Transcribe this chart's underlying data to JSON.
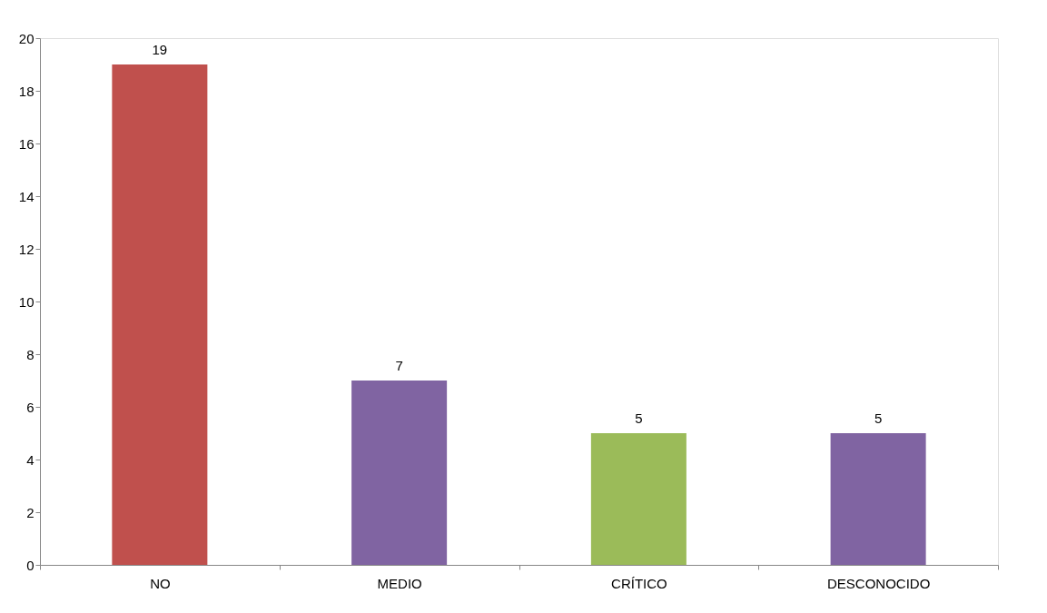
{
  "chart_data": {
    "type": "bar",
    "categories": [
      "NO",
      "MEDIO",
      "CRÍTICO",
      "DESCONOCIDO"
    ],
    "values": [
      19,
      7,
      5,
      5
    ],
    "colors": [
      "#c0504d",
      "#8064a2",
      "#9bbb59",
      "#8064a2"
    ],
    "ylim": [
      0,
      20
    ],
    "yticks": [
      0,
      2,
      4,
      6,
      8,
      10,
      12,
      14,
      16,
      18,
      20
    ],
    "grid": false,
    "legend": false,
    "data_labels": true
  }
}
